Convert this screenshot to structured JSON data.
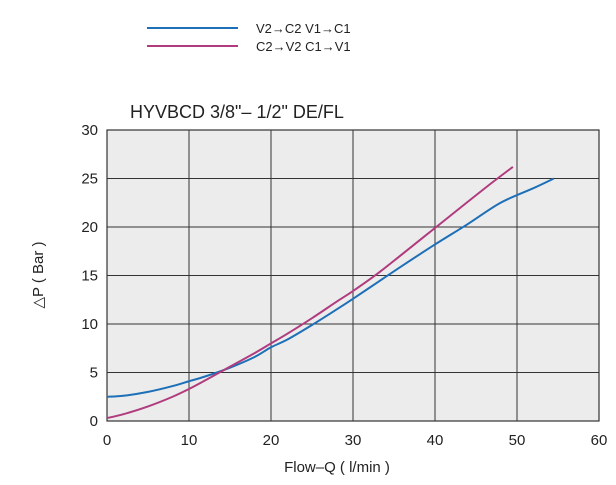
{
  "chart_data": {
    "type": "line",
    "title": "HYVBCD 3/8\"– 1/2\" DE/FL",
    "xlabel": "Flow–Q ( l/min )",
    "ylabel": "△P ( Bar )",
    "xlim": [
      0,
      60
    ],
    "ylim": [
      0,
      30
    ],
    "x_ticks": [
      "0",
      "10",
      "20",
      "30",
      "40",
      "50",
      "60"
    ],
    "y_ticks": [
      "0",
      "5",
      "10",
      "15",
      "20",
      "25",
      "30"
    ],
    "grid": true,
    "legend_position": "top-left, above plot",
    "plot_background": "#ececec",
    "series": [
      {
        "name": "V2→C2  V1→C1",
        "color": "#1d6fb8",
        "x": [
          0,
          2,
          5,
          8,
          10,
          12,
          15,
          18,
          20,
          22,
          25,
          28,
          30,
          33,
          36,
          40,
          44,
          48,
          52,
          54.5
        ],
        "y": [
          2.5,
          2.6,
          3.0,
          3.6,
          4.1,
          4.6,
          5.5,
          6.6,
          7.6,
          8.4,
          9.9,
          11.5,
          12.6,
          14.3,
          16.0,
          18.2,
          20.3,
          22.5,
          24.0,
          25.0
        ]
      },
      {
        "name": "C2→V2  C1→V1",
        "color": "#b03c7e",
        "x": [
          0,
          2,
          5,
          8,
          10,
          12,
          15,
          18,
          20,
          22,
          25,
          28,
          30,
          33,
          36,
          40,
          44,
          47,
          49.5
        ],
        "y": [
          0.3,
          0.7,
          1.5,
          2.5,
          3.3,
          4.2,
          5.6,
          7.0,
          8.0,
          9.0,
          10.6,
          12.3,
          13.4,
          15.2,
          17.2,
          19.9,
          22.6,
          24.6,
          26.2
        ]
      }
    ]
  }
}
